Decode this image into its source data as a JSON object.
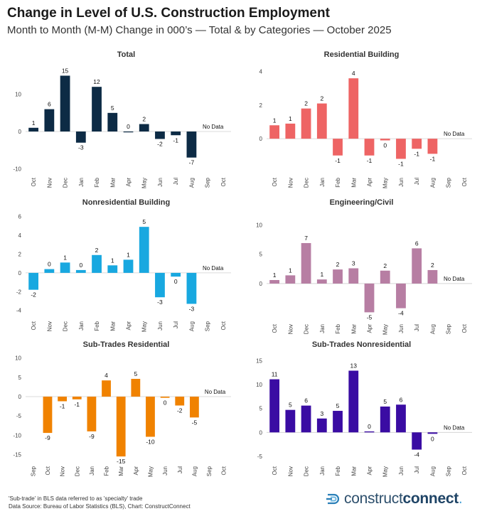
{
  "header": {
    "title": "Change in Level of U.S. Construction Employment",
    "subtitle": "Month to Month (M-M) Change in 000’s — Total & by Categories — October 2025"
  },
  "footer": {
    "note1": "'Sub-trade' in BLS data referred to as 'specialty' trade",
    "note2": "Data Source: Bureau of Labor Statistics (BLS), Chart: ConstructConnect",
    "logo_light": "construct",
    "logo_bold": "connect",
    "logo_dot": "."
  },
  "chart_data": [
    {
      "type": "bar",
      "title": "Total",
      "color": "#0d2b45",
      "categories": [
        "Oct",
        "Nov",
        "Dec",
        "Jan",
        "Feb",
        "Mar",
        "Apr",
        "May",
        "Jun",
        "Jul",
        "Aug",
        "Sep",
        "Oct"
      ],
      "values": [
        1,
        6,
        15,
        -3,
        12,
        5,
        0,
        2,
        -2,
        -1,
        -7,
        null,
        null
      ],
      "labels": [
        "1",
        "6",
        "15",
        "-3",
        "12",
        "5",
        "0",
        "2",
        "-2",
        "-1",
        "-7",
        "",
        ""
      ],
      "yticks": [
        "-10",
        "0",
        "10"
      ],
      "ylim": [
        -10.5,
        17
      ],
      "no_data_label": "No Data"
    },
    {
      "type": "bar",
      "title": "Residential Building",
      "color": "#ee6464",
      "categories": [
        "Oct",
        "Nov",
        "Dec",
        "Jan",
        "Feb",
        "Mar",
        "Apr",
        "May",
        "Jun",
        "Jul",
        "Aug",
        "Sep",
        "Oct"
      ],
      "values": [
        0.8,
        0.9,
        1.8,
        2.1,
        -1.0,
        3.6,
        -1.0,
        -0.1,
        -1.2,
        -0.6,
        -0.9,
        null,
        null
      ],
      "labels": [
        "1",
        "1",
        "2",
        "2",
        "-1",
        "4",
        "-1",
        "0",
        "-1",
        "-1",
        "-1",
        "",
        ""
      ],
      "yticks": [
        "0",
        "2",
        "4"
      ],
      "ylim": [
        -1.9,
        4.2
      ],
      "no_data_label": "No Data"
    },
    {
      "type": "bar",
      "title": "Nonresidential Building",
      "color": "#18a8e0",
      "categories": [
        "Oct",
        "Nov",
        "Dec",
        "Jan",
        "Feb",
        "Mar",
        "Apr",
        "May",
        "Jun",
        "Jul",
        "Aug",
        "Sep",
        "Oct"
      ],
      "values": [
        -1.8,
        0.4,
        1.1,
        0.3,
        1.9,
        0.8,
        1.4,
        4.9,
        -2.6,
        -0.4,
        -3.3,
        null,
        null
      ],
      "labels": [
        "-2",
        "0",
        "1",
        "0",
        "2",
        "1",
        "1",
        "5",
        "-3",
        "0",
        "-3",
        "",
        ""
      ],
      "yticks": [
        "-4",
        "-2",
        "0",
        "2",
        "4",
        "6"
      ],
      "ylim": [
        -4.4,
        6.2
      ],
      "no_data_label": "No Data"
    },
    {
      "type": "bar",
      "title": "Engineering/Civil",
      "color": "#b77ea3",
      "categories": [
        "Oct",
        "Nov",
        "Dec",
        "Jan",
        "Feb",
        "Mar",
        "Apr",
        "May",
        "Jun",
        "Jul",
        "Aug",
        "Sep",
        "Oct"
      ],
      "values": [
        0.6,
        1.4,
        6.9,
        0.7,
        2.4,
        2.6,
        -4.9,
        2.2,
        -4.2,
        6.0,
        2.3,
        null,
        null
      ],
      "labels": [
        "1",
        "1",
        "7",
        "1",
        "2",
        "3",
        "-5",
        "2",
        "-4",
        "6",
        "2",
        "",
        ""
      ],
      "yticks": [
        "0",
        "5",
        "10"
      ],
      "ylim": [
        -5.7,
        11.5
      ],
      "no_data_label": "No Data"
    },
    {
      "type": "bar",
      "title": "Sub-Trades Residential",
      "color": "#f08200",
      "categories": [
        "Sep",
        "Oct",
        "Nov",
        "Dec",
        "Jan",
        "Feb",
        "Mar",
        "Apr",
        "May",
        "Jun",
        "Jul",
        "Aug",
        "Sep",
        "Oct"
      ],
      "values": [
        null,
        -9.4,
        -1.2,
        -0.7,
        -9.0,
        4.2,
        -15.5,
        4.6,
        -10.4,
        -0.3,
        -2.3,
        -5.4,
        null,
        null
      ],
      "labels": [
        "",
        "-9",
        "-1",
        "-1",
        "-9",
        "4",
        "-15",
        "5",
        "-10",
        "0",
        "-2",
        "-5",
        "",
        ""
      ],
      "yticks": [
        "-15",
        "-10",
        "-5",
        "0",
        "5",
        "10"
      ],
      "ylim": [
        -16.2,
        10.5
      ],
      "no_data_label": "No Data"
    },
    {
      "type": "bar",
      "title": "Sub-Trades Nonresidential",
      "color": "#3a0ca3",
      "categories": [
        "Oct",
        "Nov",
        "Dec",
        "Jan",
        "Feb",
        "Mar",
        "Apr",
        "May",
        "Jun",
        "Jul",
        "Aug",
        "Sep",
        "Oct"
      ],
      "values": [
        11.1,
        4.7,
        5.6,
        2.9,
        4.5,
        12.9,
        0.2,
        5.4,
        5.8,
        -3.6,
        -0.3,
        null,
        null
      ],
      "labels": [
        "11",
        "5",
        "6",
        "3",
        "5",
        "13",
        "0",
        "5",
        "6",
        "-4",
        "0",
        "",
        ""
      ],
      "yticks": [
        "-5",
        "0",
        "5",
        "10",
        "15"
      ],
      "ylim": [
        -5.6,
        15.5
      ],
      "no_data_label": "No Data"
    }
  ]
}
